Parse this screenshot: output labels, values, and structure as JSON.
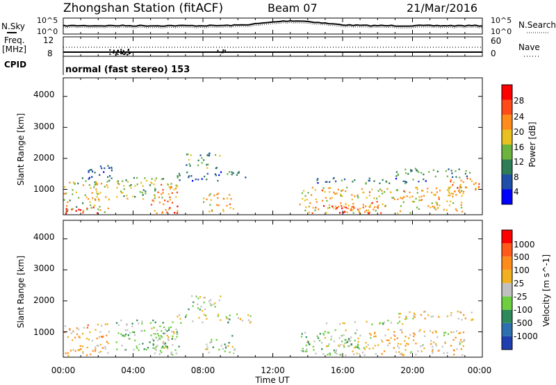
{
  "header": {
    "station": "Zhongshan Station (fitACF)",
    "beam": "Beam 07",
    "date": "21/Mar/2016"
  },
  "noise_panel": {
    "left_label": "N.Sky",
    "right_label": "N.Search",
    "left_ticks": [
      "10^5",
      "10^0"
    ],
    "right_ticks": [
      "10^5",
      "10^0"
    ]
  },
  "freq_panel": {
    "left_label": "Freq.",
    "left_unit": "[MHz]",
    "left_ticks": [
      "12",
      "8"
    ],
    "right_label": "Nave",
    "right_ticks": [
      "60",
      "0"
    ]
  },
  "cpid": {
    "label": "CPID",
    "value": "normal (fast stereo) 153"
  },
  "power_panel": {
    "ylabel": "Slant Range [km]",
    "yticks": [
      "4000",
      "3000",
      "2000",
      "1000"
    ],
    "colorbar_label": "Power [dB]",
    "colorbar_ticks": [
      "28",
      "24",
      "20",
      "16",
      "12",
      "8",
      "4"
    ],
    "colors": [
      "#0000ff",
      "#1f4fa8",
      "#2e7d57",
      "#6db33f",
      "#e8c020",
      "#ff8c1a",
      "#ff4a1a",
      "#ff0000"
    ]
  },
  "velocity_panel": {
    "ylabel": "Slant Range [km]",
    "yticks": [
      "4000",
      "3000",
      "2000",
      "1000"
    ],
    "colorbar_label": "Velocity [m s^-1]",
    "colorbar_ticks": [
      "1000",
      "500",
      "100",
      "25",
      "-25",
      "-100",
      "-500",
      "-1000"
    ],
    "colors": [
      "#1f3fb0",
      "#2e6fb0",
      "#2e8a5a",
      "#6dcf3f",
      "#c0c0c0",
      "#f0b020",
      "#ff8c1a",
      "#ff5a1a",
      "#ff0000"
    ]
  },
  "x_axis": {
    "ticks": [
      "00:00",
      "04:00",
      "08:00",
      "12:00",
      "16:00",
      "20:00",
      "00:00"
    ],
    "label": "Time UT"
  },
  "chart_data": {
    "type": "heatmap",
    "title": "Zhongshan Station (fitACF)  Beam 07  21/Mar/2016",
    "x": "Time UT (hours)",
    "xlim": [
      0,
      24
    ],
    "ylim_km": [
      180,
      4600
    ],
    "panels": [
      {
        "name": "Power",
        "zlabel": "Power [dB]",
        "zrange": [
          0,
          30
        ],
        "patches": [
          {
            "t": [
              0.0,
              2.6
            ],
            "r": [
              250,
              1300
            ],
            "z": 16
          },
          {
            "t": [
              0.0,
              2.2
            ],
            "r": [
              250,
              450
            ],
            "z": 28
          },
          {
            "t": [
              1.0,
              3.0
            ],
            "r": [
              1300,
              1800
            ],
            "z": 6
          },
          {
            "t": [
              3.0,
              6.5
            ],
            "r": [
              700,
              1400
            ],
            "z": 14
          },
          {
            "t": [
              5.0,
              6.6
            ],
            "r": [
              250,
              1200
            ],
            "z": 22
          },
          {
            "t": [
              6.5,
              10.8
            ],
            "r": [
              1300,
              1600
            ],
            "z": 8
          },
          {
            "t": [
              7.0,
              9.0
            ],
            "r": [
              1700,
              2200
            ],
            "z": 12
          },
          {
            "t": [
              8.0,
              9.8
            ],
            "r": [
              300,
              900
            ],
            "z": 18
          },
          {
            "t": [
              13.5,
              23.0
            ],
            "r": [
              250,
              1100
            ],
            "z": 18
          },
          {
            "t": [
              14.0,
              18.0
            ],
            "r": [
              250,
              500
            ],
            "z": 26
          },
          {
            "t": [
              14.5,
              21.0
            ],
            "r": [
              1200,
              1400
            ],
            "z": 8
          },
          {
            "t": [
              19.0,
              23.5
            ],
            "r": [
              1400,
              1700
            ],
            "z": 10
          },
          {
            "t": [
              22.0,
              23.8
            ],
            "r": [
              800,
              1400
            ],
            "z": 22
          }
        ]
      },
      {
        "name": "Velocity",
        "zlabel": "Velocity [m s^-1]",
        "zrange": [
          -1000,
          1000
        ],
        "patches": [
          {
            "t": [
              0.0,
              2.6
            ],
            "r": [
              250,
              1300
            ],
            "z": 300
          },
          {
            "t": [
              3.0,
              6.5
            ],
            "r": [
              400,
              1400
            ],
            "z": -200
          },
          {
            "t": [
              5.0,
              6.6
            ],
            "r": [
              250,
              1200
            ],
            "z": -100
          },
          {
            "t": [
              6.5,
              10.8
            ],
            "r": [
              1300,
              1600
            ],
            "z": 0
          },
          {
            "t": [
              7.0,
              9.0
            ],
            "r": [
              1700,
              2200
            ],
            "z": -50
          },
          {
            "t": [
              8.0,
              9.8
            ],
            "r": [
              300,
              900
            ],
            "z": -80
          },
          {
            "t": [
              13.5,
              17.0
            ],
            "r": [
              300,
              1100
            ],
            "z": -150
          },
          {
            "t": [
              15.0,
              17.5
            ],
            "r": [
              250,
              800
            ],
            "z": 0
          },
          {
            "t": [
              15.0,
              19.5
            ],
            "r": [
              1250,
              1400
            ],
            "z": 0
          },
          {
            "t": [
              17.5,
              23.0
            ],
            "r": [
              250,
              1100
            ],
            "z": 200
          },
          {
            "t": [
              19.0,
              23.5
            ],
            "r": [
              1400,
              1700
            ],
            "z": 150
          }
        ]
      }
    ]
  }
}
